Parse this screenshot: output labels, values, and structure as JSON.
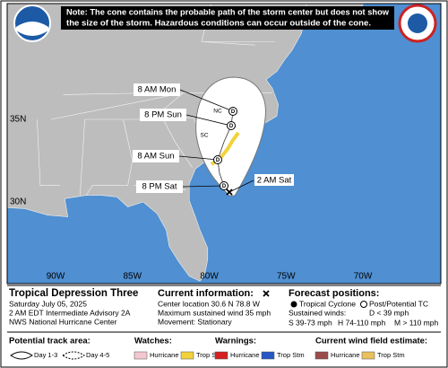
{
  "note": {
    "lines": [
      "Note: The cone contains the probable path of the storm center but does not show",
      "the size of the storm. Hazardous conditions can occur outside of the cone."
    ]
  },
  "map": {
    "lat_labels": [
      "35N",
      "30N"
    ],
    "lon_labels": [
      "90W",
      "85W",
      "80W",
      "75W",
      "70W"
    ],
    "state_labels": [
      "NC",
      "SC"
    ],
    "current_label": "2 AM Sat",
    "forecast_points": [
      {
        "label": "8 PM Sat",
        "letter": "D"
      },
      {
        "label": "8 AM Sun",
        "letter": "D"
      },
      {
        "label": "8 PM Sun",
        "letter": "D"
      },
      {
        "label": "8 AM Mon",
        "letter": "D"
      }
    ]
  },
  "info": {
    "storm_name": "Tropical Depression Three",
    "date": "Saturday July 05, 2025",
    "advisory": "2 AM EDT Intermediate Advisory 2A",
    "center": "NWS National Hurricane Center",
    "current_title": "Current information:",
    "current_lines": [
      "Center location 30.6 N 78.8 W",
      "Maximum sustained wind 35 mph",
      "Movement: Stationary"
    ],
    "forecast_title": "Forecast positions:",
    "tropical_cyclone": "Tropical Cyclone",
    "post_tc": "Post/Potential TC",
    "sustained": "Sustained winds:",
    "wind_classes": [
      "D < 39 mph",
      "S 39-73 mph",
      "H 74-110 mph",
      "M > 110 mph"
    ]
  },
  "legend": {
    "track_title": "Potential track area:",
    "day13": "Day 1-3",
    "day45": "Day 4-5",
    "watches_title": "Watches:",
    "watches": [
      "Hurricane",
      "Trop Stm"
    ],
    "warnings_title": "Warnings:",
    "warnings": [
      "Hurricane",
      "Trop Stm"
    ],
    "wind_title": "Current wind field estimate:",
    "wind": [
      "Hurricane",
      "Trop Stm"
    ]
  }
}
